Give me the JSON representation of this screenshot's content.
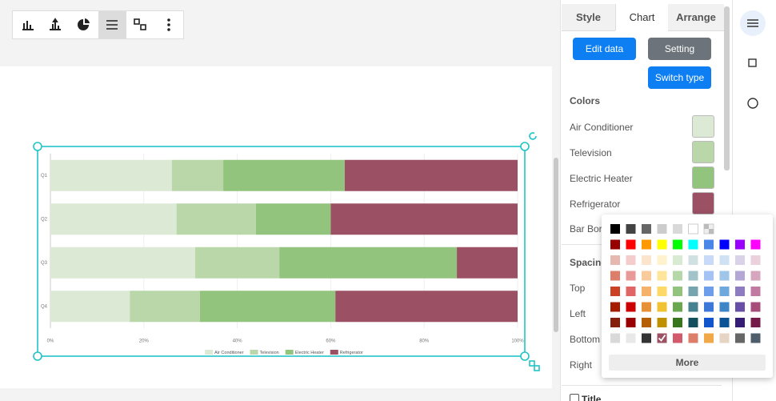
{
  "tabs": [
    "Style",
    "Chart",
    "Arrange"
  ],
  "buttons": {
    "edit_data": "Edit data",
    "setting": "Setting",
    "switch_type": "Switch type"
  },
  "colors": {
    "title": "Colors",
    "bar_border": "Bar Border"
  },
  "spacing": {
    "title": "Spacing",
    "top": "Top",
    "left": "Left",
    "bottom": "Bottom",
    "right": "Right"
  },
  "title_checkbox": "Title",
  "color_picker": {
    "more": "More"
  },
  "chart_data": {
    "type": "bar",
    "orientation": "horizontal",
    "stacked": true,
    "categories": [
      "Q1",
      "Q2",
      "Q3",
      "Q4"
    ],
    "series": [
      {
        "name": "Air Conditioner",
        "color": "#dce9d5",
        "values": [
          26,
          27,
          31,
          17
        ]
      },
      {
        "name": "Television",
        "color": "#b9d7a8",
        "values": [
          11,
          17,
          18,
          15
        ]
      },
      {
        "name": "Electric Heater",
        "color": "#93c47d",
        "values": [
          26,
          16,
          38,
          29
        ]
      },
      {
        "name": "Refrigerator",
        "color": "#9c5064",
        "values": [
          37,
          40,
          13,
          39
        ]
      }
    ],
    "xlim": [
      0,
      100
    ],
    "xticks": [
      {
        "value": 0,
        "label": "0%"
      },
      {
        "value": 20,
        "label": "20%"
      },
      {
        "value": 40,
        "label": "40%"
      },
      {
        "value": 60,
        "label": "60%"
      },
      {
        "value": 80,
        "label": "80%"
      },
      {
        "value": 100,
        "label": "100%"
      }
    ],
    "grid": true,
    "legend": "bottom"
  }
}
